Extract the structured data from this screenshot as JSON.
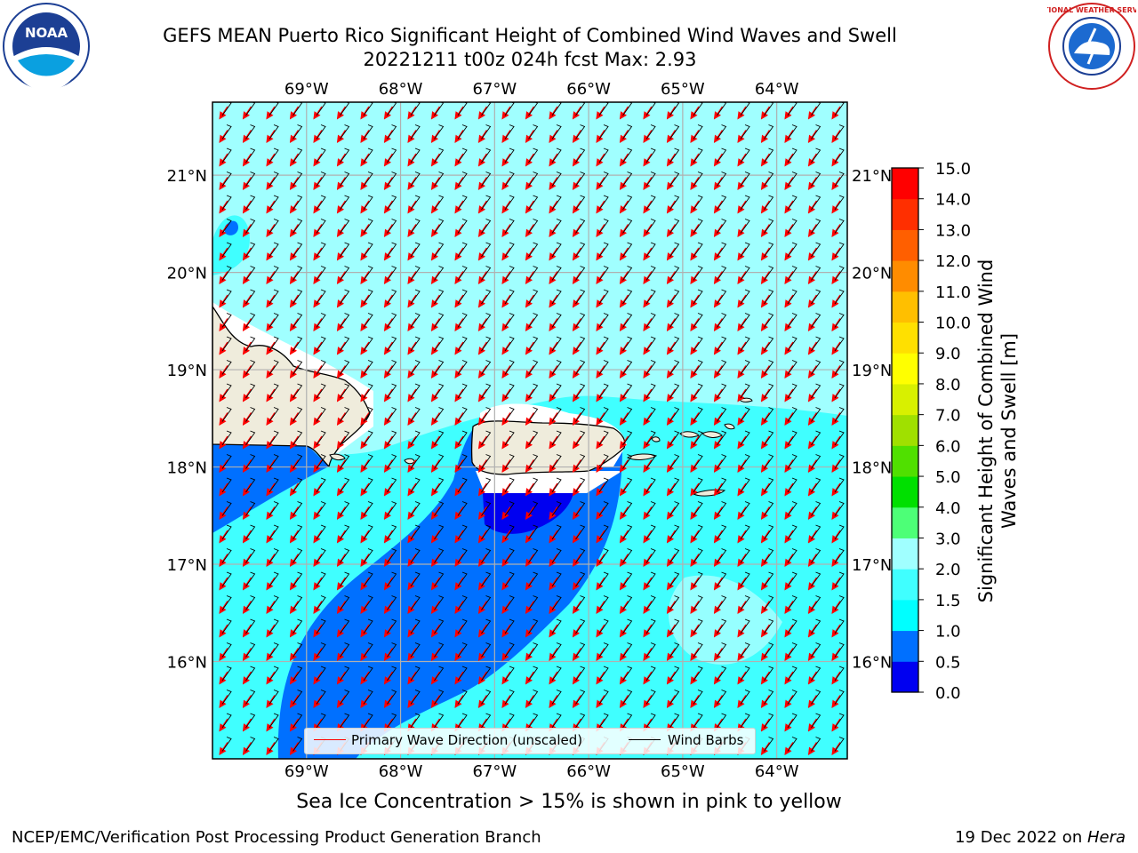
{
  "title": {
    "line1": "GEFS MEAN Puerto Rico Significant Height of Combined Wind Waves and Swell",
    "line2": "20221211 t00z 024h fcst   Max: 2.93"
  },
  "logos": {
    "left": {
      "icon": "noaa-logo",
      "text": "NOAA"
    },
    "right": {
      "icon": "nws-logo",
      "text": "NATIONAL WEATHER SERVICE"
    }
  },
  "axes": {
    "lon_labels": [
      "69°W",
      "68°W",
      "67°W",
      "66°W",
      "65°W",
      "64°W"
    ],
    "lat_labels_left": [
      "21°N",
      "20°N",
      "19°N",
      "18°N",
      "17°N",
      "16°N"
    ],
    "lat_labels_right": [
      "21°N",
      "20°N",
      "19°N",
      "18°N",
      "17°N",
      "16°N"
    ],
    "lon_values": [
      -69,
      -68,
      -67,
      -66,
      -65,
      -64
    ],
    "lat_values": [
      21,
      20,
      19,
      18,
      17,
      16
    ],
    "lon_range": [
      -70,
      -63.25
    ],
    "lat_range": [
      15,
      21.75
    ],
    "grid": true
  },
  "legend": {
    "wave_label": "Primary Wave Direction (unscaled)",
    "wind_label": "Wind Barbs",
    "wave_color": "#ff0000",
    "wind_color": "#000000"
  },
  "colorbar": {
    "title": "Significant Height of Combined Wind Waves and Swell [m]",
    "tick_labels": [
      "15.0",
      "14.0",
      "13.0",
      "12.0",
      "11.0",
      "10.0",
      "9.0",
      "8.0",
      "7.0",
      "6.0",
      "5.0",
      "4.0",
      "3.0",
      "2.0",
      "1.5",
      "1.0",
      "0.5",
      "0.0"
    ],
    "levels": [
      0,
      0.5,
      1.0,
      1.5,
      2.0,
      3.0,
      4.0,
      5.0,
      6.0,
      7.0,
      8.0,
      9.0,
      10.0,
      11.0,
      12.0,
      13.0,
      14.0,
      15.0
    ],
    "colors": [
      "#0000f0",
      "#0070ff",
      "#00ffff",
      "#40ffff",
      "#a0ffff",
      "#4dff77",
      "#00e000",
      "#50e000",
      "#a0e000",
      "#d8f000",
      "#ffff00",
      "#ffe000",
      "#ffbf00",
      "#ff8c00",
      "#ff5f00",
      "#ff2f00",
      "#ff0000"
    ]
  },
  "chart_data": {
    "type": "heatmap",
    "variable": "Significant Height of Combined Wind Waves and Swell [m]",
    "max_value": 2.93,
    "regions": [
      {
        "level_band": "1.5-2.0",
        "color": "#a0ffff",
        "area": "open Atlantic north of 18.5°N"
      },
      {
        "level_band": "1.0-1.5",
        "color": "#40ffff",
        "area": "Caribbean Sea south of islands"
      },
      {
        "level_band": "0.5-1.0",
        "color": "#0070ff",
        "area": "Mona Passage lee plume extending southwest"
      },
      {
        "level_band": "0.0-0.5",
        "color": "#0000f0",
        "area": "south coast of Puerto Rico"
      }
    ],
    "wave_direction": "from northeast (arrows pointing southwest)",
    "wind": "easterly to northeasterly barbs"
  },
  "subtitle": "Sea Ice Concentration > 15% is shown in pink to yellow",
  "footer": {
    "left": "NCEP/EMC/Verification Post Processing Product Generation Branch",
    "right_date": "19 Dec 2022 on ",
    "right_host": "Hera"
  },
  "colors": {
    "land": "#efecdc",
    "grid": "#b0b0b0"
  }
}
